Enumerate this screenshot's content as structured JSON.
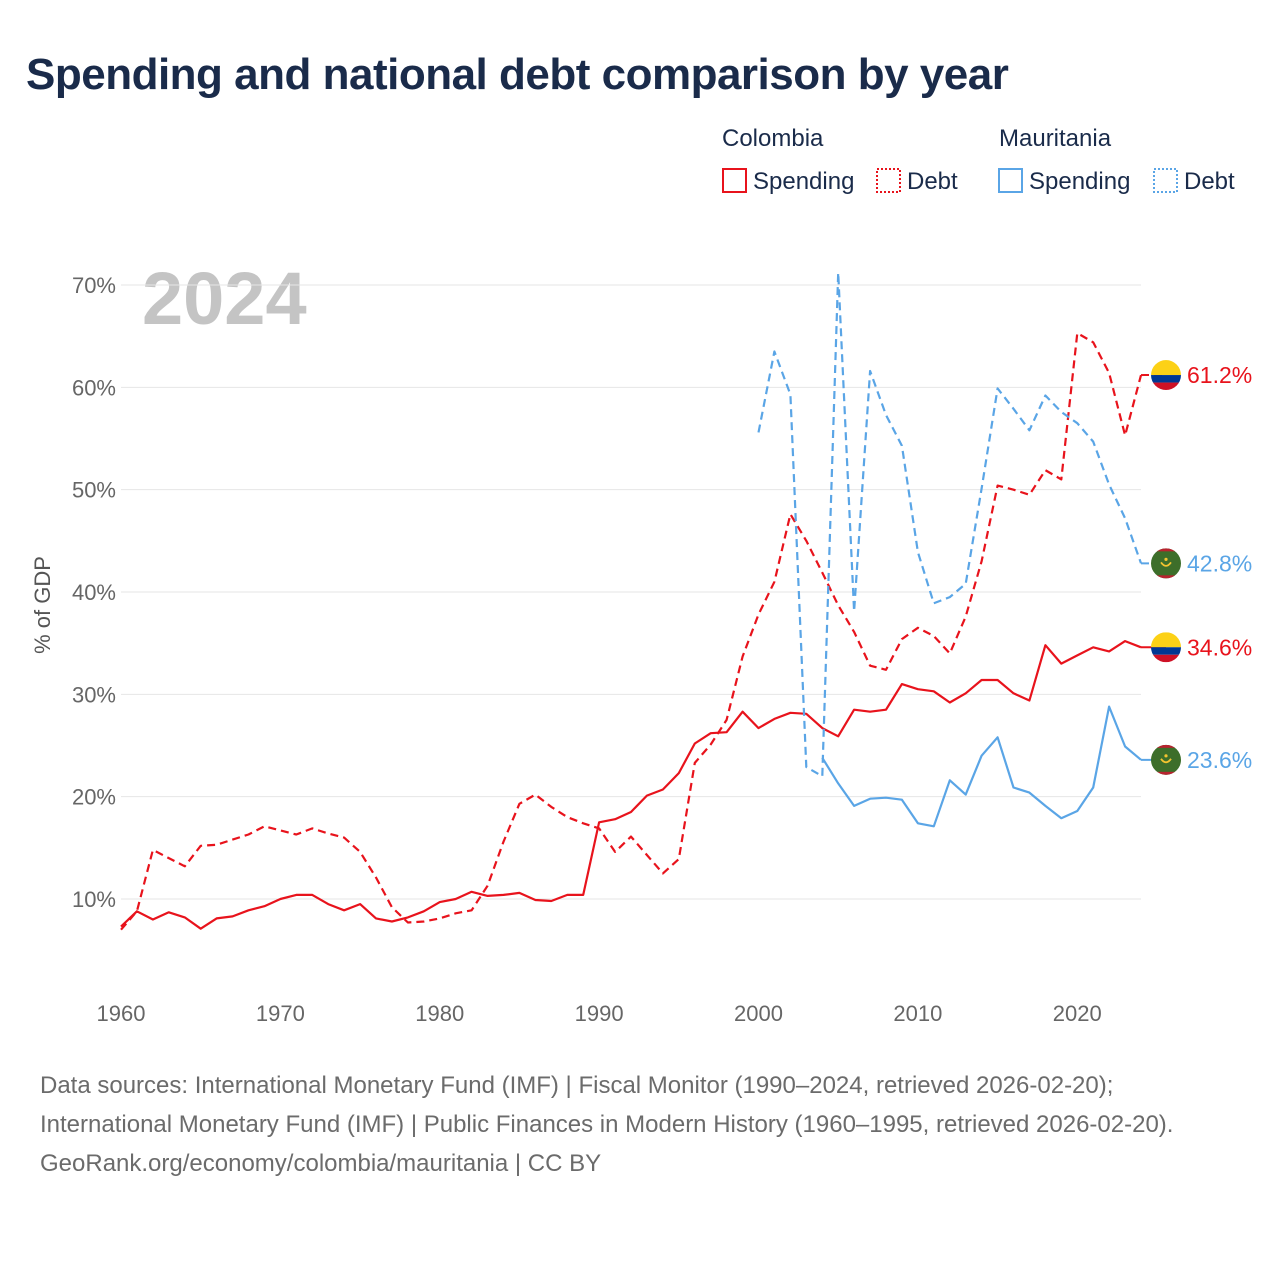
{
  "title": "Spending and national debt comparison by year",
  "legend": {
    "groups": [
      {
        "country": "Colombia",
        "color": "#e8131c",
        "spending_label": "Spending",
        "debt_label": "Debt"
      },
      {
        "country": "Mauritania",
        "color": "#5aa5e6",
        "spending_label": "Spending",
        "debt_label": "Debt"
      }
    ]
  },
  "footer": {
    "sources": "Data sources: International Monetary Fund (IMF) | Fiscal Monitor (1990–2024, retrieved 2026-02-20); International Monetary Fund (IMF) | Public Finances in Modern History (1960–1995, retrieved 2026-02-20).",
    "credit": "GeoRank.org/economy/colombia/mauritania | CC BY"
  },
  "chart_data": {
    "type": "line",
    "title": "Spending and national debt comparison by year",
    "current_year_label": "2024",
    "ylabel": "% of GDP",
    "xlabel": "",
    "xlim": [
      1960,
      2025
    ],
    "ylim": [
      4,
      73
    ],
    "y_ticks": [
      10,
      20,
      30,
      40,
      50,
      60,
      70
    ],
    "y_tick_labels": [
      "10%",
      "20%",
      "30%",
      "40%",
      "50%",
      "60%",
      "70%"
    ],
    "x_ticks": [
      1960,
      1970,
      1980,
      1990,
      2000,
      2010,
      2020
    ],
    "x_tick_labels": [
      "1960",
      "1970",
      "1980",
      "1990",
      "2000",
      "2010",
      "2020"
    ],
    "grid": true,
    "series": [
      {
        "name": "Colombia Debt",
        "country": "Colombia",
        "metric": "Debt",
        "color": "#e8131c",
        "style": "dashed",
        "end_label": "61.2%",
        "flag": "colombia",
        "x": [
          1960,
          1961,
          1962,
          1963,
          1964,
          1965,
          1966,
          1967,
          1968,
          1969,
          1970,
          1971,
          1972,
          1973,
          1974,
          1975,
          1976,
          1977,
          1978,
          1979,
          1980,
          1981,
          1982,
          1983,
          1984,
          1985,
          1986,
          1987,
          1988,
          1989,
          1990,
          1991,
          1992,
          1993,
          1994,
          1995,
          1996,
          1997,
          1998,
          1999,
          2000,
          2001,
          2002,
          2003,
          2004,
          2005,
          2006,
          2007,
          2008,
          2009,
          2010,
          2011,
          2012,
          2013,
          2014,
          2015,
          2016,
          2017,
          2018,
          2019,
          2020,
          2021,
          2022,
          2023,
          2024
        ],
        "values": [
          7.0,
          8.8,
          14.8,
          14.0,
          13.2,
          15.2,
          15.3,
          15.8,
          16.3,
          17.1,
          16.7,
          16.3,
          16.9,
          16.4,
          16.0,
          14.6,
          12.1,
          9.2,
          7.7,
          7.8,
          8.1,
          8.6,
          8.9,
          11.3,
          15.6,
          19.3,
          20.2,
          19.0,
          18.0,
          17.4,
          16.9,
          14.6,
          16.1,
          14.3,
          12.5,
          13.9,
          23.3,
          25.1,
          27.5,
          33.7,
          37.8,
          41.0,
          47.6,
          45.0,
          41.9,
          38.7,
          36.1,
          32.8,
          32.4,
          35.4,
          36.5,
          35.7,
          34.0,
          37.6,
          43.0,
          50.4,
          50.0,
          49.5,
          51.9,
          51.0,
          65.3,
          64.4,
          61.4,
          55.3,
          61.2
        ]
      },
      {
        "name": "Colombia Spending",
        "country": "Colombia",
        "metric": "Spending",
        "color": "#e8131c",
        "style": "solid",
        "end_label": "34.6%",
        "flag": "colombia",
        "x": [
          1960,
          1961,
          1962,
          1963,
          1964,
          1965,
          1966,
          1967,
          1968,
          1969,
          1970,
          1971,
          1972,
          1973,
          1974,
          1975,
          1976,
          1977,
          1978,
          1979,
          1980,
          1981,
          1982,
          1983,
          1984,
          1985,
          1986,
          1987,
          1988,
          1989,
          1990,
          1991,
          1992,
          1993,
          1994,
          1995,
          1996,
          1997,
          1998,
          1999,
          2000,
          2001,
          2002,
          2003,
          2004,
          2005,
          2006,
          2007,
          2008,
          2009,
          2010,
          2011,
          2012,
          2013,
          2014,
          2015,
          2016,
          2017,
          2018,
          2019,
          2020,
          2021,
          2022,
          2023,
          2024
        ],
        "values": [
          7.3,
          8.8,
          8.0,
          8.7,
          8.2,
          7.1,
          8.1,
          8.3,
          8.9,
          9.3,
          10.0,
          10.4,
          10.4,
          9.5,
          8.9,
          9.5,
          8.1,
          7.8,
          8.2,
          8.8,
          9.7,
          10.0,
          10.7,
          10.3,
          10.4,
          10.6,
          9.9,
          9.8,
          10.4,
          10.4,
          17.5,
          17.8,
          18.5,
          20.1,
          20.7,
          22.3,
          25.2,
          26.2,
          26.3,
          28.3,
          26.7,
          27.6,
          28.2,
          28.1,
          26.7,
          25.9,
          28.5,
          28.3,
          28.5,
          31.0,
          30.5,
          30.3,
          29.2,
          30.1,
          31.4,
          31.4,
          30.1,
          29.4,
          34.8,
          33.0,
          33.8,
          34.6,
          34.2,
          35.2,
          34.6
        ]
      },
      {
        "name": "Mauritania Debt",
        "country": "Mauritania",
        "metric": "Debt",
        "color": "#5aa5e6",
        "style": "dashed",
        "end_label": "42.8%",
        "flag": "mauritania",
        "x": [
          2000,
          2001,
          2002,
          2003,
          2004,
          2005,
          2006,
          2007,
          2008,
          2009,
          2010,
          2011,
          2012,
          2013,
          2014,
          2015,
          2016,
          2017,
          2018,
          2019,
          2020,
          2021,
          2022,
          2023,
          2024
        ],
        "values": [
          55.6,
          63.5,
          59.3,
          22.9,
          22.0,
          71.2,
          38.1,
          61.6,
          57.3,
          54.3,
          43.9,
          38.9,
          39.5,
          40.8,
          50.1,
          59.9,
          57.9,
          55.8,
          59.2,
          57.6,
          56.5,
          54.7,
          50.5,
          47.2,
          42.8
        ]
      },
      {
        "name": "Mauritania Spending",
        "country": "Mauritania",
        "metric": "Spending",
        "color": "#5aa5e6",
        "style": "solid",
        "end_label": "23.6%",
        "flag": "mauritania",
        "x": [
          2004,
          2005,
          2006,
          2007,
          2008,
          2009,
          2010,
          2011,
          2012,
          2013,
          2014,
          2015,
          2016,
          2017,
          2018,
          2019,
          2020,
          2021,
          2022,
          2023,
          2024
        ],
        "values": [
          23.8,
          21.3,
          19.1,
          19.8,
          19.9,
          19.7,
          17.4,
          17.1,
          21.6,
          20.2,
          24.0,
          25.8,
          20.9,
          20.4,
          19.1,
          17.9,
          18.6,
          20.9,
          28.8,
          24.9,
          23.6
        ]
      }
    ]
  }
}
